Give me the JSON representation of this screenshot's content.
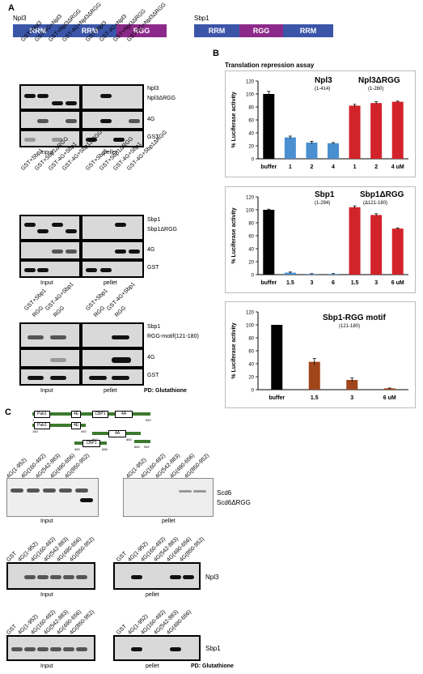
{
  "panel_labels": {
    "a": "A",
    "b": "B",
    "c": "C"
  },
  "domains": {
    "npl3_title": "Npl3",
    "npl3": [
      "RRM",
      "RRM",
      "RGG"
    ],
    "sbp1_title": "Sbp1",
    "sbp1": [
      "RRM",
      "RGG",
      "RRM"
    ]
  },
  "colors": {
    "rrm": "#3b55a8",
    "rgg": "#8c2a8a",
    "black_bar": "#000000",
    "blue_bar": "#4a8fd0",
    "red_bar": "#d2232a",
    "brown_bar": "#a0461a",
    "motif_bar": "#3d7a2f"
  },
  "blot1": {
    "lanes": [
      "GST+Npl3",
      "GST-4G+Npl3",
      "GST+Npl3ΔRGG",
      "GST-4G+Npl3ΔRGG",
      "GST+Npl3",
      "GST-4G+Npl3",
      "GST+Npl3ΔRGG",
      "GST-4G+Npl3ΔRGG"
    ],
    "rows": [
      "Npl3",
      "Npl3ΔRGG",
      "4G",
      "GST"
    ],
    "input": "Input",
    "pellet": "pellet"
  },
  "blot2": {
    "lanes": [
      "GST+Sbp1",
      "GST+Sbp1ΔRGG",
      "GST-4G+Sbp1",
      "GST-4G+Sbp1ΔRGG",
      "GST+Sbp1",
      "GST+Sbp1ΔRGG",
      "GST-4G+Sbp1",
      "GST-4G+Sbp1ΔRGG"
    ],
    "rows": [
      "Sbp1",
      "Sbp1ΔRGG",
      "4G",
      "GST"
    ],
    "input": "Input",
    "pellet": "pellet"
  },
  "blot3": {
    "lanes": [
      "GST+Sbp1",
      "RGG",
      "GST-4G+Sbp1",
      "RGG",
      "GST+Sbp1",
      "RGG",
      "GST-4G+Sbp1",
      "RGG"
    ],
    "rows": [
      "Sbp1",
      "RGG-motif(121-180)",
      "4G",
      "GST"
    ],
    "input": "Input",
    "pellet": "pellet",
    "pd": "PD: Glutathione"
  },
  "charts_title": "Translation repression assay",
  "chart_data": [
    {
      "type": "bar",
      "ylabel": "% Luciferase activity",
      "ylim": [
        0,
        120
      ],
      "yticks": [
        0,
        20,
        40,
        60,
        80,
        100,
        120
      ],
      "categories": [
        "buffer",
        "1",
        "2",
        "4",
        "1",
        "2",
        "4 uM"
      ],
      "values": [
        100,
        33,
        25,
        24,
        82,
        86,
        88
      ],
      "errors": [
        4,
        2,
        2,
        1,
        2,
        2,
        1
      ],
      "colors": [
        "#000000",
        "#4a8fd0",
        "#4a8fd0",
        "#4a8fd0",
        "#d2232a",
        "#d2232a",
        "#d2232a"
      ],
      "annotations": [
        {
          "text": "Npl3",
          "sub": "(1-414)"
        },
        {
          "text": "Npl3ΔRGG",
          "sub": "(1-280)"
        }
      ]
    },
    {
      "type": "bar",
      "ylabel": "% Luciferase activity",
      "ylim": [
        0,
        120
      ],
      "yticks": [
        0,
        20,
        40,
        60,
        80,
        100,
        120
      ],
      "categories": [
        "buffer",
        "1.5",
        "3",
        "6",
        "1.5",
        "3",
        "6 uM"
      ],
      "values": [
        100,
        3,
        1,
        1,
        104,
        92,
        71
      ],
      "errors": [
        1,
        1,
        0.5,
        0.5,
        2,
        2,
        1
      ],
      "colors": [
        "#000000",
        "#4a8fd0",
        "#4a8fd0",
        "#4a8fd0",
        "#d2232a",
        "#d2232a",
        "#d2232a"
      ],
      "annotations": [
        {
          "text": "Sbp1",
          "sub": "(1-294)"
        },
        {
          "text": "Sbp1ΔRGG",
          "sub": "(Δ121-180)"
        }
      ]
    },
    {
      "type": "bar",
      "ylabel": "% Luciferase activity",
      "ylim": [
        0,
        120
      ],
      "yticks": [
        0,
        20,
        40,
        60,
        80,
        100,
        120
      ],
      "categories": [
        "buffer",
        "1.5",
        "3",
        "6  uM"
      ],
      "values": [
        100,
        43,
        15,
        2
      ],
      "errors": [
        0,
        5,
        3,
        0.5
      ],
      "colors": [
        "#000000",
        "#a0461a",
        "#a0461a",
        "#a0461a"
      ],
      "annotations": [
        {
          "text": "Sbp1-RGG motif",
          "sub": "(121-180)"
        }
      ]
    }
  ],
  "construct_map": {
    "labels": [
      "Pab1",
      "4E",
      "CBP1",
      "4A",
      "Pab1",
      "4E",
      "4A",
      "CBP1"
    ],
    "numbers": [
      "1",
      "952",
      "160",
      "492",
      "542",
      "883",
      "850",
      "952",
      "490",
      "656"
    ]
  },
  "blot4": {
    "lanes": [
      "4G(1-952)",
      "4G(160-492)",
      "4G(542-883)",
      "4G(490-656)",
      "4G(850-952)",
      "4G(1-952)",
      "4G(160-492)",
      "4G(542-883)",
      "4G(490-656)",
      "4G(850-952)"
    ],
    "rows": [
      "Scd6",
      "Scd6ΔRGG"
    ],
    "input": "Input",
    "pellet": "pellet"
  },
  "blot5": {
    "lanes": [
      "GST",
      "4G(1-952)",
      "4G(160-492)",
      "4G(542-883)",
      "4G(490-656)",
      "4G(850-952)",
      "GST",
      "4G(1-952)",
      "4G(160-492)",
      "4G(542-883)",
      "4G(490-656)",
      "4G(850-952)"
    ],
    "rows": [
      "Npl3"
    ],
    "input": "Input",
    "pellet": "pellet"
  },
  "blot6": {
    "lanes": [
      "GST",
      "4G(1-952)",
      "4G(160-492)",
      "4G(542-883)",
      "4G(490-656)",
      "4G(850-952)",
      "GST",
      "4G(1-952)",
      "4G(160-492)",
      "4G(542-883)",
      "4G(490-656)",
      "4G(850-952)"
    ],
    "rows": [
      "Sbp1"
    ],
    "input": "Input",
    "pellet": "pellet",
    "pd": "PD: Glutathione"
  }
}
